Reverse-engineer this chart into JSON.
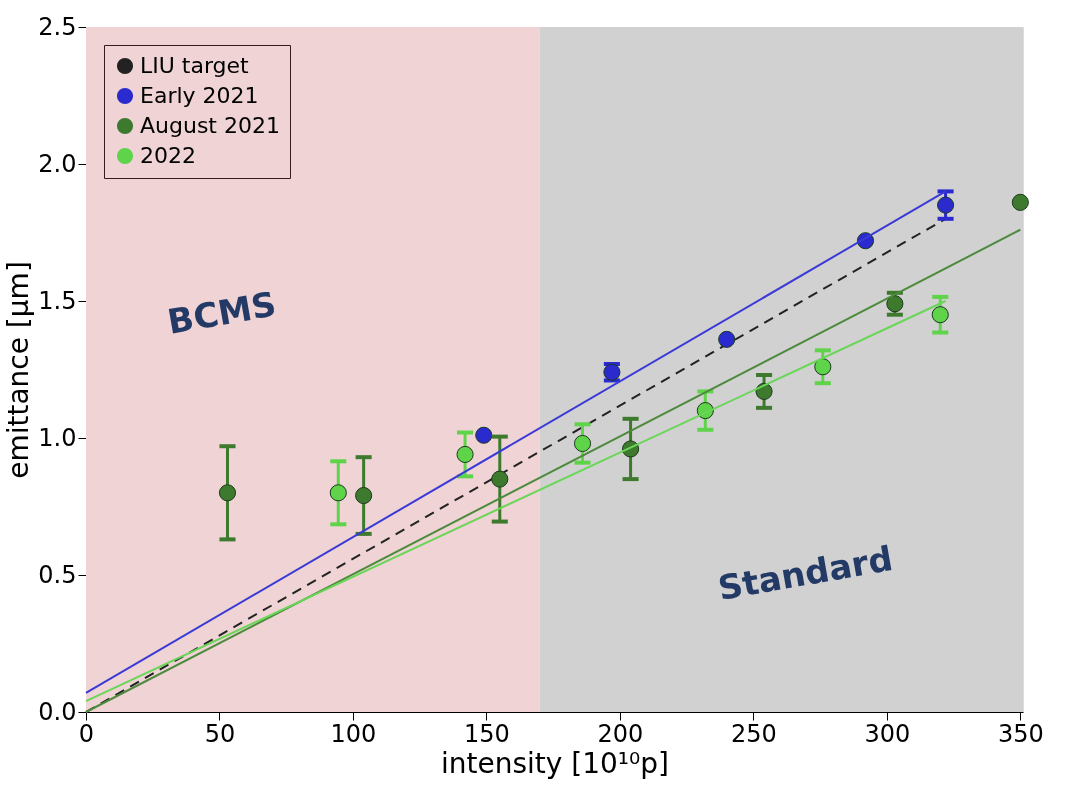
{
  "chart_data": {
    "type": "scatter",
    "xlabel": "intensity [10¹⁰p]",
    "ylabel": "emittance [µm]",
    "xlim": [
      0,
      351
    ],
    "ylim": [
      0,
      2.5
    ],
    "xticks": [
      0,
      50,
      100,
      150,
      200,
      250,
      300,
      350
    ],
    "yticks": [
      {
        "value": 0,
        "label": "0.0"
      },
      0.5,
      {
        "value": 1,
        "label": "1.0"
      },
      1.5,
      {
        "value": 2,
        "label": "2.0"
      },
      2.5
    ],
    "legend": "top left",
    "marker": "circle",
    "bands": [
      {
        "axis": "x",
        "from": 0,
        "to": 170,
        "label": "BCMS",
        "color": "#efd3d5"
      },
      {
        "axis": "x",
        "from": 170,
        "to": 351,
        "label": "Standard",
        "color": "#d1d1d1"
      }
    ],
    "series": [
      {
        "name": "LIU target",
        "type": "line",
        "marker": "none",
        "line_style": "dashed",
        "color": "#222222",
        "x": [
          0,
          322
        ],
        "values": [
          0,
          1.8
        ]
      },
      {
        "name": "Early 2021",
        "color": "#2a2acf",
        "x": [
          149,
          197,
          240,
          292,
          322
        ],
        "values": [
          1.01,
          1.24,
          1.36,
          1.72,
          1.85
        ],
        "errors": [
          null,
          0.03,
          null,
          null,
          0.05
        ]
      },
      {
        "name": "August 2021",
        "color": "#3d7a2e",
        "x": [
          53,
          104,
          155,
          204,
          254,
          303,
          350
        ],
        "values": [
          0.8,
          0.79,
          0.85,
          0.96,
          1.17,
          1.49,
          1.86
        ],
        "errors": [
          0.17,
          0.14,
          0.155,
          0.11,
          0.06,
          0.04,
          null
        ]
      },
      {
        "name": "2022",
        "color": "#5fd44a",
        "x": [
          94.5,
          142,
          186,
          232,
          276,
          320
        ],
        "values": [
          0.8,
          0.94,
          0.98,
          1.1,
          1.26,
          1.45
        ],
        "errors": [
          0.115,
          0.08,
          0.07,
          0.07,
          0.06,
          0.065
        ]
      },
      {
        "type": "line",
        "marker": "none",
        "line_style": "solid",
        "color": "#3a3ad6",
        "x": [
          0,
          322
        ],
        "values": [
          0.07,
          1.9
        ]
      },
      {
        "type": "line",
        "marker": "none",
        "line_style": "solid",
        "color": "#4c8a3c",
        "x": [
          0,
          350
        ],
        "values": [
          0.0,
          1.76
        ]
      },
      {
        "type": "line",
        "marker": "none",
        "line_style": "solid",
        "color": "#6ad658",
        "x": [
          0,
          322
        ],
        "values": [
          0.04,
          1.5
        ]
      }
    ]
  }
}
